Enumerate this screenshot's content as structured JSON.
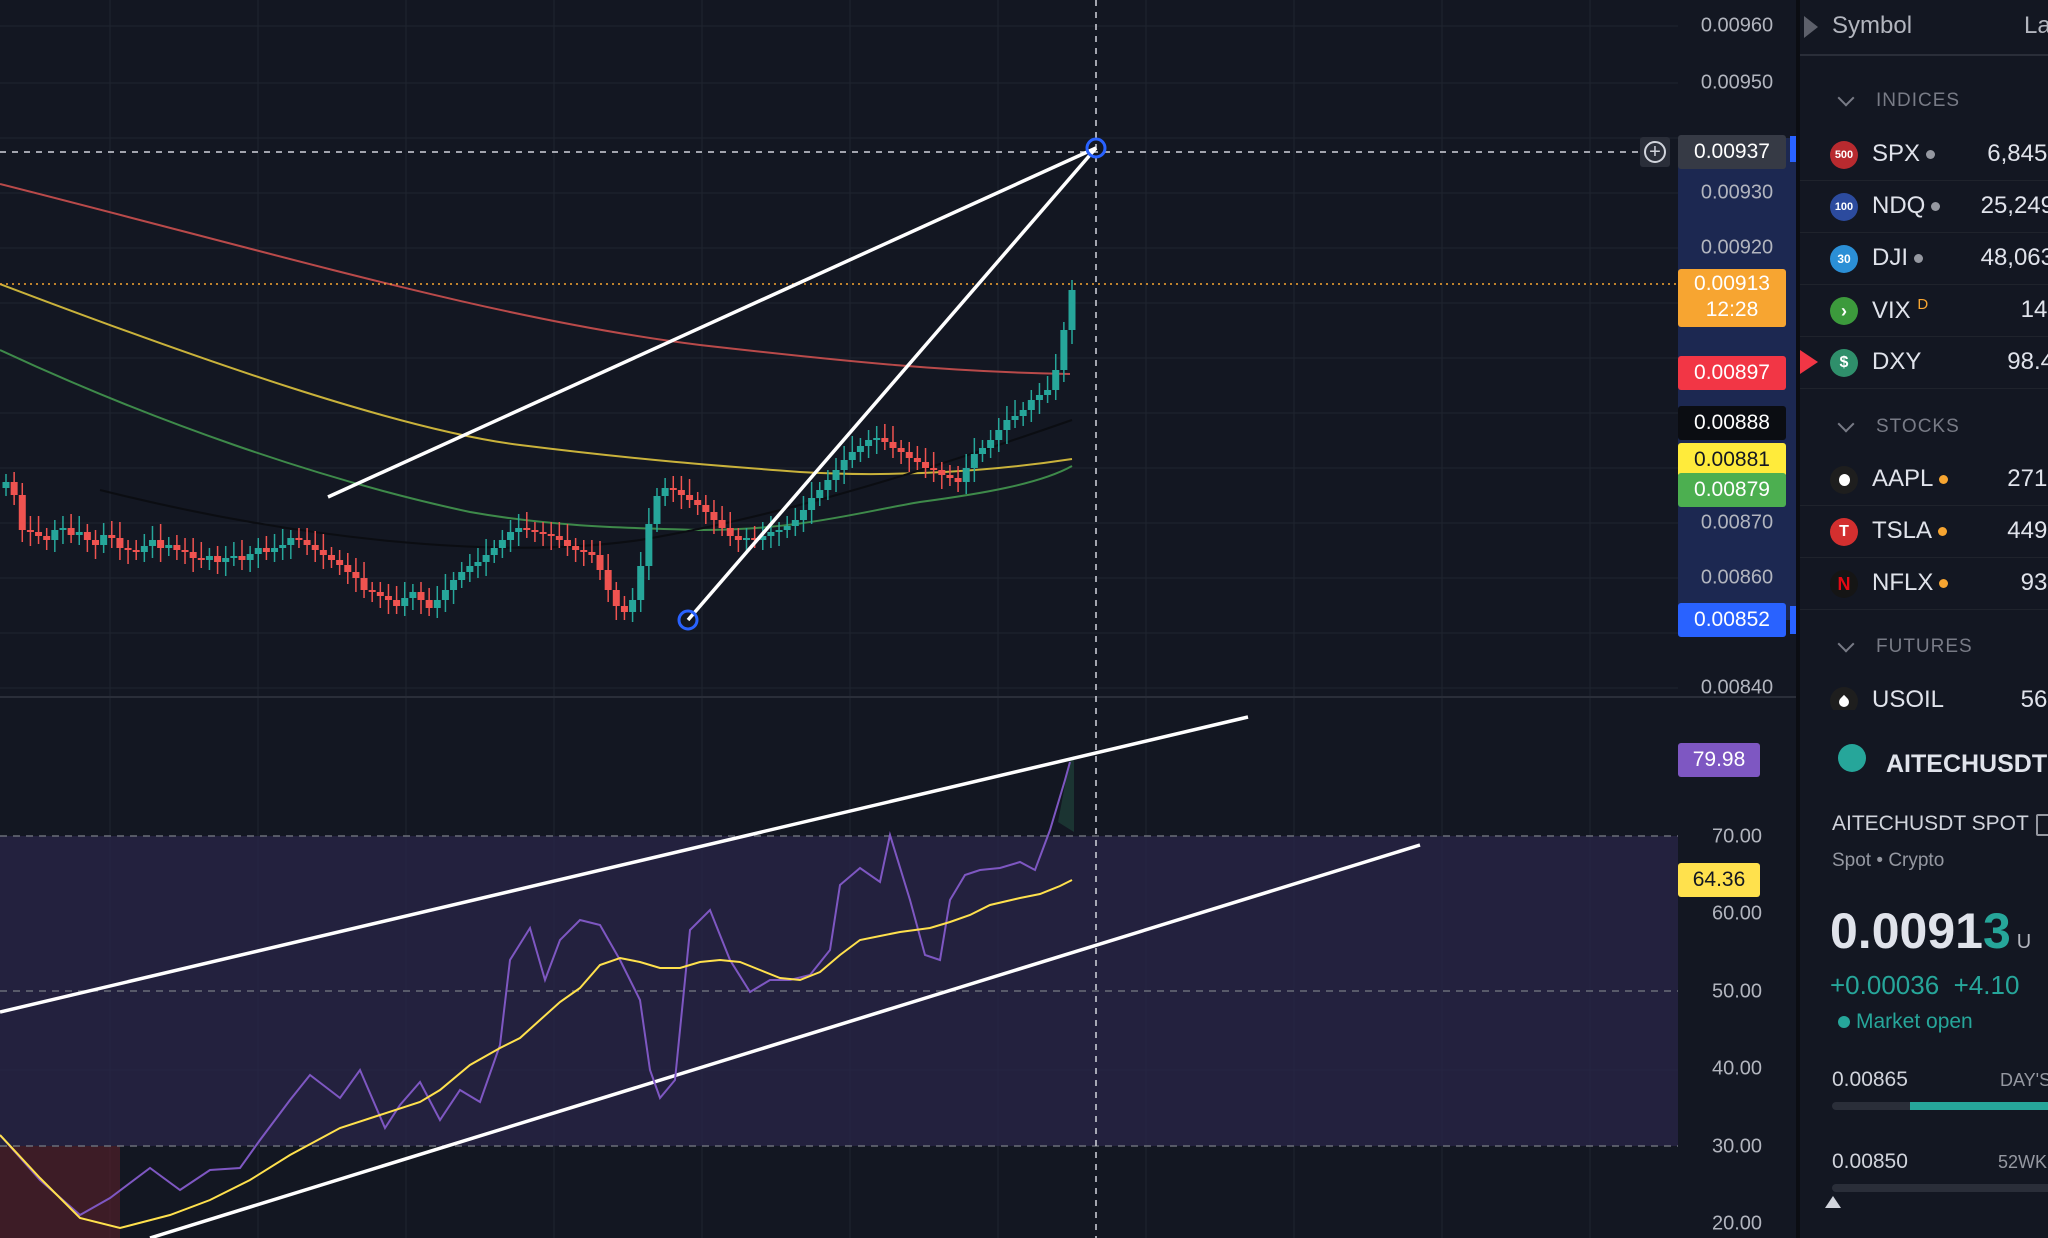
{
  "price_axis": {
    "labels": [
      "0.00960",
      "0.00950",
      "0.00930",
      "0.00920",
      "0.00870",
      "0.00860",
      "0.00840"
    ],
    "crosshair_price": "0.00937",
    "last_price": "0.00913",
    "countdown": "12:28",
    "ma_red": "0.00897",
    "ma_black": "0.00888",
    "ma_yellow": "0.00881",
    "ma_green": "0.00879",
    "low_price": "0.00852",
    "colors": {
      "crosshair": "#363a45",
      "last": "#f7a531",
      "ma_red": "#f23645",
      "ma_black": "#0b0d12",
      "ma_yellow": "#ffeb3b",
      "ma_green": "#4caf50",
      "low": "#2962ff"
    }
  },
  "rsi_axis": {
    "labels": [
      "70.00",
      "60.00",
      "50.00",
      "40.00",
      "30.00",
      "20.00"
    ],
    "rsi_value": "79.98",
    "rsi_ma_value": "64.36",
    "colors": {
      "rsi": "#7e57c2",
      "rsi_ma": "#ffe14d"
    }
  },
  "watchlist": {
    "header_symbol": "Symbol",
    "header_last": "La",
    "sections": [
      {
        "title": "INDICES",
        "items": [
          {
            "badge": "500",
            "symbol": "SPX",
            "last": "6,845.",
            "badge_color": "#b82a2f",
            "dot_color": "#9598a1",
            "sup": ""
          },
          {
            "badge": "100",
            "symbol": "NDQ",
            "last": "25,249",
            "badge_color": "#2c4b9e",
            "dot_color": "#9598a1",
            "sup": ""
          },
          {
            "badge": "30",
            "symbol": "DJI",
            "last": "48,063",
            "badge_color": "#2b8fd6",
            "dot_color": "#9598a1",
            "sup": ""
          },
          {
            "badge": "›",
            "symbol": "VIX",
            "last": "14.",
            "badge_color": "#3c9a3c",
            "dot_color": "",
            "sup": "D"
          },
          {
            "badge": "$",
            "symbol": "DXY",
            "last": "98.4",
            "badge_color": "#2f8f6b",
            "dot_color": "",
            "sup": ""
          }
        ]
      },
      {
        "title": "STOCKS",
        "items": [
          {
            "badge": "",
            "symbol": "AAPL",
            "last": "271.",
            "badge_color": "#1e1e1e",
            "dot_color": "#f7a531",
            "sup": ""
          },
          {
            "badge": "T",
            "symbol": "TSLA",
            "last": "449.",
            "badge_color": "#d32f2f",
            "dot_color": "#f7a531",
            "sup": ""
          },
          {
            "badge": "N",
            "symbol": "NFLX",
            "last": "93.",
            "badge_color": "#151515",
            "dot_color": "#f7a531",
            "sup": ""
          }
        ]
      },
      {
        "title": "FUTURES",
        "items": [
          {
            "badge": "",
            "symbol": "USOIL",
            "last": "56.",
            "badge_color": "#1e1e1e",
            "dot_color": "",
            "sup": ""
          }
        ]
      }
    ]
  },
  "details": {
    "symbol": "AITECHUSDT",
    "full_name": "AITECHUSDT SPOT",
    "type_spot": "Spot",
    "type_crypto": "Crypto",
    "price_main": "0.0091",
    "price_last_digit": "3",
    "price_unit": "U",
    "change_abs": "+0.00036",
    "change_pct": "+4.10",
    "market_status": "Market open",
    "day_low": "0.00865",
    "day_label": "DAY'S",
    "week_low": "0.00850",
    "week_label": "52WK",
    "day_range_fill": 0.6,
    "colors": {
      "up": "#26a69a",
      "text": "#d1d4dc"
    }
  }
}
